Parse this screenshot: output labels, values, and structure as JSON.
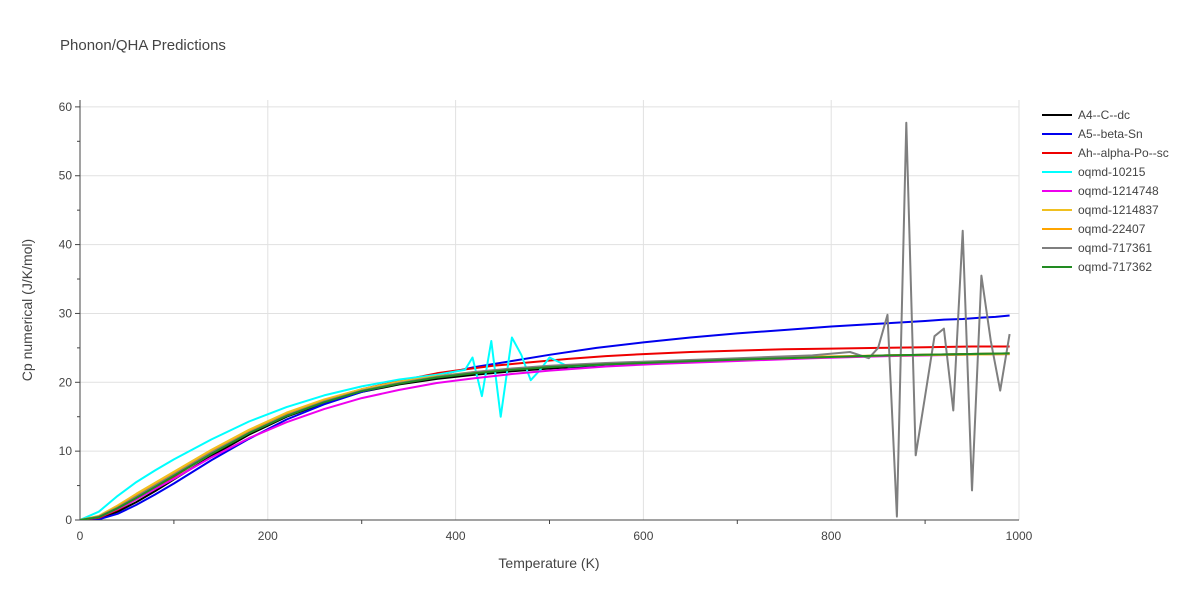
{
  "chart_data": {
    "type": "line",
    "title": "Phonon/QHA Predictions",
    "xlabel": "Temperature (K)",
    "ylabel": "Cp numerical (J/K/mol)",
    "xlim": [
      0,
      1000
    ],
    "ylim": [
      0,
      61
    ],
    "xticks": [
      0,
      200,
      400,
      600,
      800,
      1000
    ],
    "yticks": [
      0,
      10,
      20,
      30,
      40,
      50,
      60
    ],
    "grid": true,
    "legend_position": "right",
    "series": [
      {
        "name": "A4--C--dc",
        "color": "#000000",
        "x": [
          0,
          20,
          40,
          60,
          80,
          100,
          140,
          180,
          220,
          260,
          300,
          340,
          380,
          420,
          460,
          500,
          560,
          620,
          700,
          780,
          860,
          940,
          990
        ],
        "y": [
          0,
          0.2,
          1.2,
          2.6,
          4.2,
          5.9,
          9.3,
          12.4,
          15.0,
          17.0,
          18.6,
          19.7,
          20.5,
          21.1,
          21.6,
          22.0,
          22.5,
          22.9,
          23.3,
          23.6,
          23.9,
          24.1,
          24.2
        ]
      },
      {
        "name": "A5--beta-Sn",
        "color": "#0000ee",
        "x": [
          0,
          20,
          40,
          60,
          80,
          100,
          140,
          180,
          220,
          260,
          300,
          340,
          380,
          420,
          460,
          500,
          550,
          600,
          650,
          700,
          750,
          800,
          850,
          900,
          920,
          940,
          960,
          975,
          990
        ],
        "y": [
          0,
          0.1,
          0.9,
          2.2,
          3.7,
          5.3,
          8.7,
          11.8,
          14.6,
          16.8,
          18.6,
          19.9,
          21.0,
          22.2,
          23.1,
          24.0,
          25.0,
          25.8,
          26.5,
          27.1,
          27.6,
          28.1,
          28.5,
          28.9,
          29.1,
          29.2,
          29.4,
          29.5,
          29.7
        ]
      },
      {
        "name": "Ah--alpha-Po--sc",
        "color": "#ee0000",
        "x": [
          0,
          20,
          40,
          60,
          80,
          100,
          140,
          180,
          220,
          260,
          300,
          340,
          380,
          400,
          440,
          480,
          520,
          560,
          600,
          650,
          700,
          750,
          800,
          850,
          900,
          950,
          990
        ],
        "y": [
          0,
          0.3,
          1.5,
          3.0,
          4.6,
          6.3,
          9.7,
          12.8,
          15.4,
          17.4,
          19.0,
          20.2,
          21.3,
          21.7,
          22.4,
          22.9,
          23.4,
          23.8,
          24.1,
          24.4,
          24.6,
          24.8,
          24.9,
          25.0,
          25.1,
          25.2,
          25.2
        ]
      },
      {
        "name": "oqmd-10215",
        "color": "#00ffff",
        "x": [
          0,
          20,
          40,
          60,
          80,
          100,
          140,
          180,
          220,
          260,
          300,
          340,
          380,
          410,
          418,
          428,
          438,
          448,
          460,
          470,
          480,
          490,
          500,
          520,
          560,
          600
        ],
        "y": [
          0,
          1.2,
          3.5,
          5.5,
          7.2,
          8.8,
          11.7,
          14.3,
          16.4,
          18.1,
          19.4,
          20.4,
          21.1,
          21.8,
          23.6,
          18.0,
          26.0,
          15.0,
          26.5,
          24.0,
          20.3,
          21.8,
          23.6,
          22.3,
          22.6,
          22.9
        ]
      },
      {
        "name": "oqmd-1214748",
        "color": "#ee00ee",
        "x": [
          0,
          20,
          40,
          60,
          80,
          100,
          140,
          180,
          220,
          260,
          300,
          340,
          380,
          420,
          460,
          500,
          560,
          620,
          700,
          780,
          860,
          940,
          990
        ],
        "y": [
          0,
          0.4,
          1.6,
          3.0,
          4.5,
          6.0,
          9.1,
          11.9,
          14.2,
          16.1,
          17.7,
          18.9,
          19.9,
          20.6,
          21.2,
          21.7,
          22.3,
          22.7,
          23.1,
          23.5,
          23.8,
          24.0,
          24.1
        ]
      },
      {
        "name": "oqmd-1214837",
        "color": "#f0c020",
        "x": [
          0,
          20,
          40,
          60,
          80,
          100,
          140,
          180,
          220,
          260,
          300,
          340,
          380,
          420,
          460,
          500,
          560,
          620,
          700,
          780,
          860,
          940,
          990
        ],
        "y": [
          0,
          0.6,
          2.1,
          3.8,
          5.4,
          7.0,
          10.2,
          13.1,
          15.6,
          17.5,
          19.0,
          20.1,
          20.9,
          21.5,
          21.9,
          22.3,
          22.7,
          23.0,
          23.3,
          23.6,
          23.9,
          24.0,
          24.1
        ]
      },
      {
        "name": "oqmd-22407",
        "color": "#ffa500",
        "x": [
          0,
          20,
          40,
          60,
          80,
          100,
          140,
          180,
          220,
          260,
          300,
          340,
          380,
          420,
          460,
          500,
          560,
          620,
          700,
          780,
          860,
          940,
          990
        ],
        "y": [
          0,
          0.5,
          1.9,
          3.5,
          5.1,
          6.7,
          9.9,
          12.8,
          15.3,
          17.3,
          18.8,
          19.9,
          20.8,
          21.4,
          21.9,
          22.3,
          22.7,
          23.0,
          23.4,
          23.7,
          23.9,
          24.1,
          24.2
        ]
      },
      {
        "name": "oqmd-717361",
        "color": "#7f7f7f",
        "x": [
          0,
          20,
          40,
          60,
          80,
          100,
          140,
          180,
          220,
          260,
          300,
          340,
          380,
          420,
          460,
          500,
          560,
          620,
          660,
          700,
          740,
          780,
          820,
          840,
          850,
          860,
          870,
          880,
          890,
          900,
          910,
          920,
          930,
          940,
          950,
          960,
          970,
          980,
          990
        ],
        "y": [
          0,
          0.5,
          1.8,
          3.4,
          5.0,
          6.6,
          9.8,
          12.7,
          15.2,
          17.2,
          18.8,
          19.9,
          20.8,
          21.5,
          22.0,
          22.4,
          22.8,
          23.1,
          23.3,
          23.5,
          23.7,
          23.9,
          24.4,
          23.5,
          25.0,
          29.8,
          0.5,
          57.7,
          9.4,
          18.0,
          26.7,
          27.8,
          15.9,
          42.0,
          4.3,
          35.5,
          26.0,
          18.8,
          27.0
        ]
      },
      {
        "name": "oqmd-717362",
        "color": "#228b22",
        "x": [
          0,
          20,
          40,
          60,
          80,
          100,
          140,
          180,
          220,
          260,
          300,
          340,
          380,
          420,
          460,
          500,
          560,
          620,
          700,
          780,
          860,
          940,
          990
        ],
        "y": [
          0,
          0.4,
          1.7,
          3.2,
          4.8,
          6.4,
          9.6,
          12.6,
          15.1,
          17.1,
          18.7,
          19.8,
          20.7,
          21.3,
          21.8,
          22.2,
          22.6,
          22.9,
          23.3,
          23.6,
          23.9,
          24.1,
          24.2
        ]
      }
    ]
  }
}
